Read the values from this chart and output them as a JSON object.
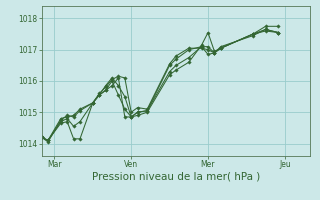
{
  "background_color": "#cce8e8",
  "grid_color": "#99cccc",
  "line_color": "#336633",
  "xlabel": "Pression niveau de la mer( hPa )",
  "ylim": [
    1013.6,
    1018.4
  ],
  "yticks": [
    1014,
    1015,
    1016,
    1017,
    1018
  ],
  "xtick_positions": [
    8,
    56,
    104,
    152
  ],
  "xtick_labels": [
    "Mar",
    "Ven",
    "Mer",
    "Jeu"
  ],
  "xlim": [
    0,
    168
  ],
  "series1_x": [
    0,
    4,
    12,
    16,
    20,
    24,
    32,
    36,
    40,
    44,
    48,
    52,
    56,
    60,
    66,
    80,
    84,
    92,
    100,
    104,
    108,
    112,
    132,
    140,
    148
  ],
  "series1_y": [
    1014.2,
    1014.1,
    1014.8,
    1014.85,
    1014.9,
    1015.1,
    1015.3,
    1015.55,
    1015.85,
    1016.1,
    1015.85,
    1015.5,
    1014.85,
    1015.0,
    1015.05,
    1016.5,
    1016.7,
    1017.0,
    1017.1,
    1016.85,
    1016.9,
    1017.05,
    1017.5,
    1017.6,
    1017.55
  ],
  "series2_x": [
    0,
    4,
    12,
    16,
    20,
    24,
    32,
    36,
    40,
    44,
    48,
    52,
    56,
    60,
    66,
    80,
    84,
    92,
    100,
    104,
    108,
    112,
    132,
    140,
    148
  ],
  "series2_y": [
    1014.2,
    1014.05,
    1014.75,
    1014.9,
    1014.85,
    1015.05,
    1015.3,
    1015.6,
    1015.8,
    1016.05,
    1016.15,
    1016.1,
    1015.0,
    1015.15,
    1015.1,
    1016.55,
    1016.8,
    1017.05,
    1017.05,
    1017.0,
    1016.9,
    1017.1,
    1017.45,
    1017.65,
    1017.55
  ],
  "series3_x": [
    0,
    4,
    12,
    16,
    20,
    24,
    32,
    36,
    40,
    44,
    48,
    52,
    56,
    60,
    66,
    80,
    84,
    92,
    100,
    104,
    108,
    112,
    132,
    140,
    148
  ],
  "series3_y": [
    1014.2,
    1014.1,
    1014.65,
    1014.7,
    1014.15,
    1014.15,
    1015.3,
    1015.55,
    1015.7,
    1015.85,
    1016.1,
    1014.85,
    1014.85,
    1014.9,
    1015.0,
    1016.2,
    1016.35,
    1016.6,
    1017.15,
    1017.55,
    1016.95,
    1017.05,
    1017.5,
    1017.65,
    1017.55
  ],
  "series4_x": [
    0,
    4,
    12,
    16,
    20,
    24,
    32,
    36,
    40,
    44,
    48,
    52,
    56,
    60,
    66,
    80,
    84,
    92,
    100,
    104,
    108,
    112,
    132,
    140,
    148
  ],
  "series4_y": [
    1014.2,
    1014.1,
    1014.7,
    1014.8,
    1014.55,
    1014.7,
    1015.3,
    1015.55,
    1015.7,
    1016.0,
    1015.55,
    1015.1,
    1014.85,
    1015.0,
    1015.05,
    1016.3,
    1016.5,
    1016.75,
    1017.1,
    1017.1,
    1016.9,
    1017.05,
    1017.5,
    1017.75,
    1017.75
  ],
  "ylabel_fontsize": 5.5,
  "tick_fontsize": 5.5,
  "xlabel_fontsize": 7.5
}
